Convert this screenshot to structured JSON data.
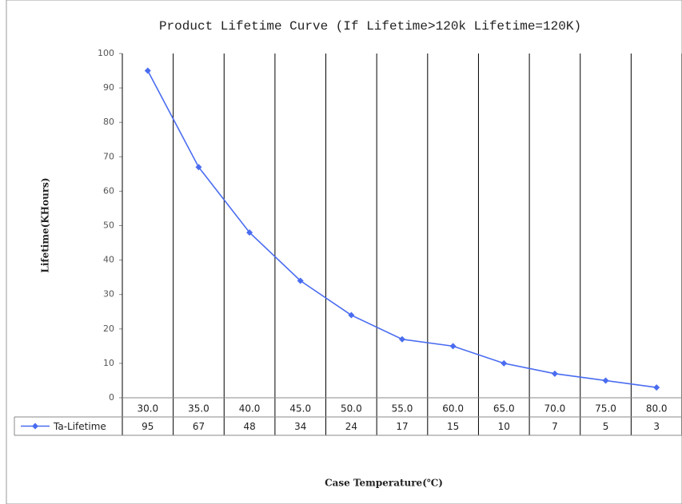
{
  "chart_data": {
    "type": "line",
    "title": "Product Lifetime Curve (If Lifetime>120k Lifetime=120K)",
    "x_label": "Case Temperature(℃)",
    "y_label": "Lifetime(KHours)",
    "categories": [
      "30.0",
      "35.0",
      "40.0",
      "45.0",
      "50.0",
      "55.0",
      "60.0",
      "65.0",
      "70.0",
      "75.0",
      "80.0"
    ],
    "series": [
      {
        "name": "Ta-Lifetime",
        "color": "#4a6cf0",
        "values": [
          95,
          67,
          48,
          34,
          24,
          17,
          15,
          10,
          7,
          5,
          3
        ]
      }
    ],
    "ylim": [
      0,
      100
    ],
    "yticks": [
      0,
      10,
      20,
      30,
      40,
      50,
      60,
      70,
      80,
      90,
      100
    ],
    "grid": false
  }
}
